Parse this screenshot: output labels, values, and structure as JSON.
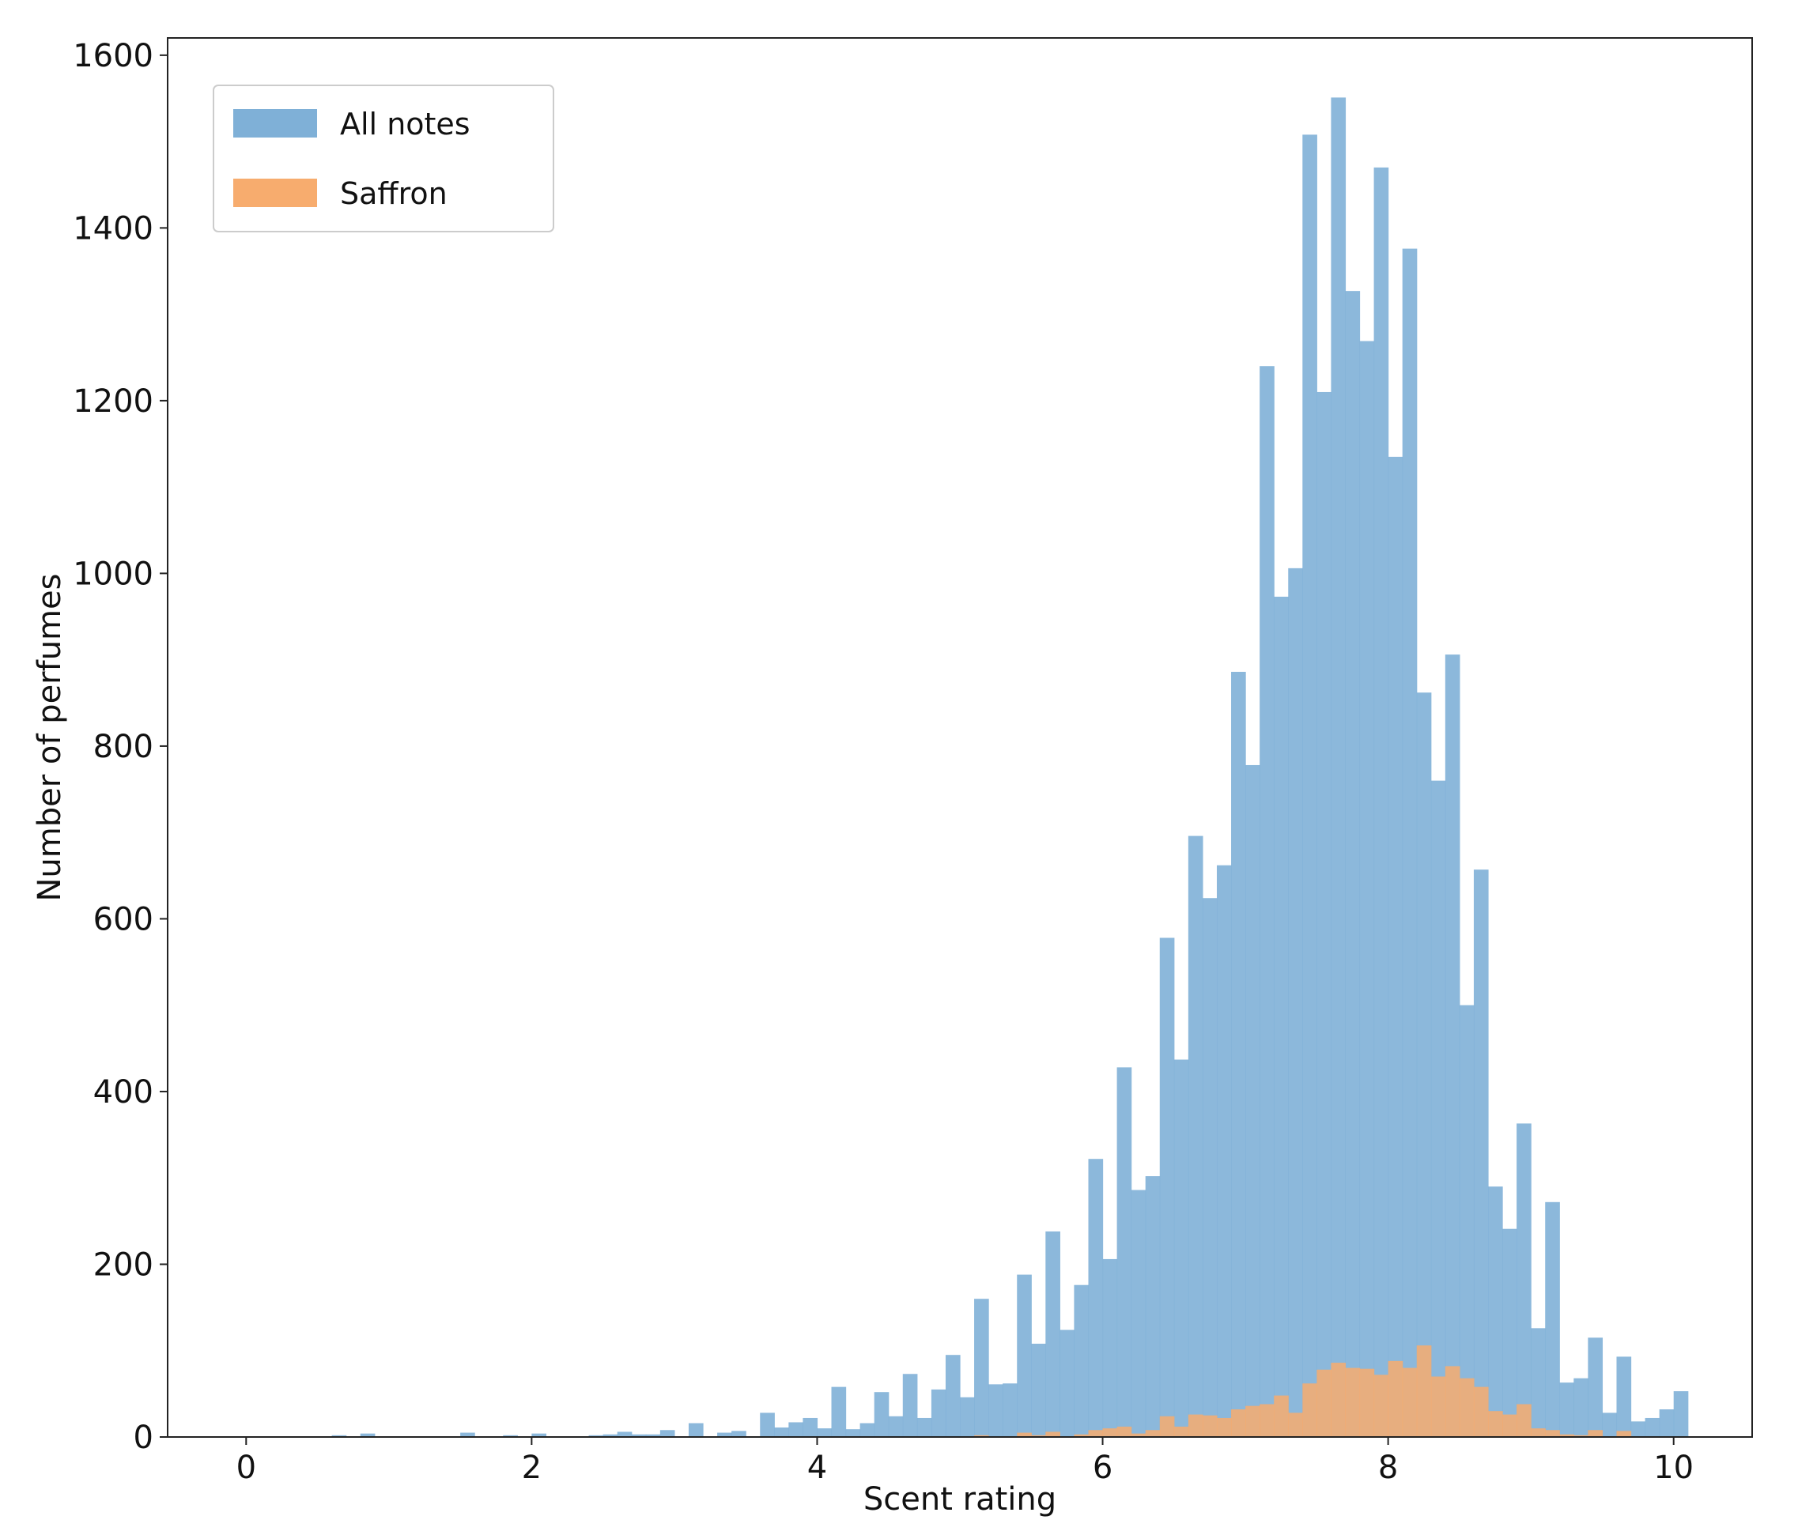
{
  "chart_data": {
    "type": "bar",
    "xlabel": "Scent rating",
    "ylabel": "Number of perfumes",
    "xlim": [
      -0.55,
      10.55
    ],
    "ylim": [
      0,
      1620
    ],
    "x_ticks": [
      0,
      2,
      4,
      6,
      8,
      10
    ],
    "y_ticks": [
      0,
      200,
      400,
      600,
      800,
      1000,
      1200,
      1400,
      1600
    ],
    "grid": false,
    "legend_position": "top-left",
    "bin_start": 0.0,
    "bin_width": 0.1,
    "series": [
      {
        "name": "All notes",
        "color": "#7fb0d7",
        "values": [
          0,
          0,
          0,
          0,
          0,
          0,
          2,
          0,
          4,
          0,
          0,
          0,
          0,
          0,
          0,
          5,
          0,
          0,
          2,
          0,
          4,
          0,
          0,
          0,
          2,
          3,
          6,
          3,
          3,
          8,
          0,
          16,
          0,
          5,
          7,
          0,
          28,
          11,
          17,
          22,
          10,
          58,
          9,
          16,
          52,
          24,
          73,
          22,
          55,
          95,
          46,
          160,
          61,
          62,
          188,
          108,
          238,
          124,
          176,
          322,
          206,
          428,
          286,
          302,
          578,
          437,
          696,
          624,
          662,
          886,
          778,
          1240,
          973,
          1006,
          1508,
          1210,
          1551,
          1327,
          1269,
          1470,
          1135,
          1376,
          862,
          760,
          906,
          500,
          657,
          290,
          241,
          363,
          126,
          272,
          63,
          68,
          115,
          28,
          93,
          18,
          22,
          32,
          53
        ]
      },
      {
        "name": "Saffron",
        "color": "#f7ac6e",
        "values": [
          0,
          0,
          0,
          0,
          0,
          0,
          0,
          0,
          0,
          0,
          0,
          0,
          0,
          0,
          0,
          0,
          0,
          0,
          0,
          0,
          0,
          0,
          0,
          0,
          0,
          0,
          0,
          0,
          0,
          0,
          0,
          0,
          0,
          0,
          0,
          0,
          0,
          0,
          0,
          0,
          0,
          0,
          0,
          0,
          0,
          0,
          0,
          0,
          0,
          0,
          0,
          2,
          0,
          0,
          5,
          2,
          6,
          0,
          3,
          8,
          10,
          12,
          4,
          8,
          24,
          12,
          26,
          25,
          22,
          32,
          36,
          38,
          48,
          28,
          62,
          78,
          86,
          80,
          79,
          72,
          88,
          80,
          106,
          70,
          82,
          68,
          58,
          30,
          26,
          38,
          10,
          8,
          3,
          2,
          8,
          0,
          7,
          0,
          0,
          0,
          0
        ]
      }
    ]
  }
}
